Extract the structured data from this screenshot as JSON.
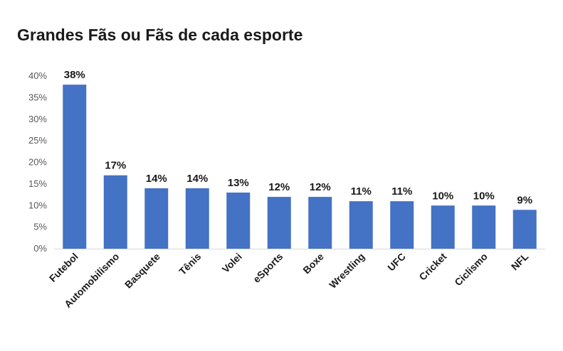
{
  "chart_data": {
    "type": "bar",
    "title": "Grandes Fãs ou Fãs de cada esporte",
    "xlabel": "",
    "ylabel": "",
    "categories": [
      "Futebol",
      "Automobilismo",
      "Basquete",
      "Tênis",
      "Volei",
      "eSports",
      "Boxe",
      "Wrestling",
      "UFC",
      "Cricket",
      "Ciclismo",
      "NFL"
    ],
    "values": [
      38,
      17,
      14,
      14,
      13,
      12,
      12,
      11,
      11,
      10,
      10,
      9
    ],
    "data_labels": [
      "38%",
      "17%",
      "14%",
      "14%",
      "13%",
      "12%",
      "12%",
      "11%",
      "11%",
      "10%",
      "10%",
      "9%"
    ],
    "ylim": [
      0,
      40
    ],
    "yticks": [
      0,
      5,
      10,
      15,
      20,
      25,
      30,
      35,
      40
    ],
    "ytick_labels": [
      "0%",
      "5%",
      "10%",
      "15%",
      "20%",
      "25%",
      "30%",
      "35%",
      "40%"
    ],
    "grid": false,
    "legend": "none",
    "bar_color": "#4472c4"
  }
}
